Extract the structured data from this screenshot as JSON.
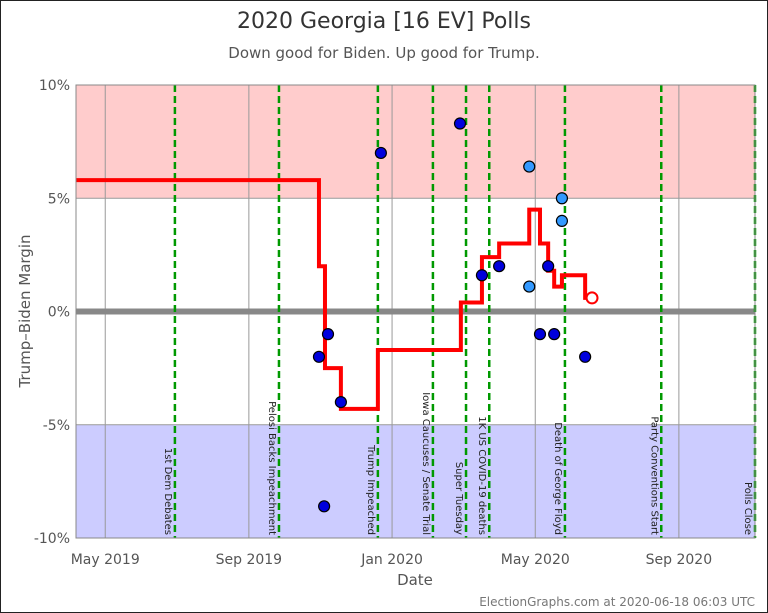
{
  "chart_data": {
    "type": "scatter",
    "title": "2020 Georgia [16 EV] Polls",
    "subtitle": "Down good for Biden. Up good for Trump.",
    "x_label": "Date",
    "y_label": "Trump–Biden Margin",
    "footer": "ElectionGraphs.com at 2020-06-18 06:03 UTC",
    "xlim": [
      2019.265,
      2020.844
    ],
    "ylim": [
      -10,
      10
    ],
    "xticks": [
      {
        "value": 2019.333,
        "label": "May 2019"
      },
      {
        "value": 2019.667,
        "label": "Sep 2019"
      },
      {
        "value": 2020.0,
        "label": "Jan 2020"
      },
      {
        "value": 2020.333,
        "label": "May 2020"
      },
      {
        "value": 2020.667,
        "label": "Sep 2020"
      }
    ],
    "yticks": [
      {
        "value": 10,
        "label": "10%"
      },
      {
        "value": 5,
        "label": "5%"
      },
      {
        "value": 0,
        "label": "0%"
      },
      {
        "value": -5,
        "label": "-5%"
      },
      {
        "value": -10,
        "label": "-10%"
      }
    ],
    "bands": [
      {
        "from": 5,
        "to": 10,
        "color": "#ffcccc"
      },
      {
        "from": -10,
        "to": -5,
        "color": "#ccccff"
      }
    ],
    "events": [
      {
        "x": 2019.495,
        "label": "1st Dem Debates"
      },
      {
        "x": 2019.737,
        "label": "Pelosi Backs Impeachment"
      },
      {
        "x": 2019.967,
        "label": "Trump Impeached"
      },
      {
        "x": 2020.095,
        "label": "Iowa Caucuses / Senate Trial"
      },
      {
        "x": 2020.172,
        "label": "Super Tuesday"
      },
      {
        "x": 2020.226,
        "label": "1K US COVID-19 deaths"
      },
      {
        "x": 2020.402,
        "label": "Death of George Floyd"
      },
      {
        "x": 2020.626,
        "label": "Party Conventions Start"
      },
      {
        "x": 2020.844,
        "label": "Polls Close"
      }
    ],
    "series": [
      {
        "type": "scatter",
        "color": "#0000dd",
        "x": [
          2019.83,
          2019.851,
          2019.842,
          2019.881,
          2019.974,
          2020.158,
          2020.209,
          2020.249,
          2020.344,
          2020.363,
          2020.377,
          2020.449
        ],
        "values": [
          -2.0,
          -1.0,
          -8.6,
          -4.0,
          7.0,
          8.3,
          1.6,
          2.0,
          -1.0,
          2.0,
          -1.0,
          -2.0
        ]
      },
      {
        "type": "scatter",
        "color": "#3399ff",
        "x": [
          2020.319,
          2020.319,
          2020.395,
          2020.395
        ],
        "values": [
          6.4,
          1.1,
          5.0,
          4.0
        ]
      },
      {
        "type": "line",
        "color": "#ff0000",
        "x": [
          2019.265,
          2019.83,
          2019.83,
          2019.844,
          2019.844,
          2019.881,
          2019.881,
          2019.967,
          2019.967,
          2020.16,
          2020.16,
          2020.209,
          2020.209,
          2020.249,
          2020.249,
          2020.319,
          2020.319,
          2020.344,
          2020.344,
          2020.363,
          2020.363,
          2020.377,
          2020.377,
          2020.395,
          2020.395,
          2020.449,
          2020.449,
          2020.465
        ],
        "values": [
          5.8,
          5.8,
          2.0,
          2.0,
          -2.5,
          -2.5,
          -4.3,
          -4.3,
          -1.7,
          -1.7,
          0.4,
          0.4,
          2.4,
          2.4,
          3.0,
          3.0,
          4.5,
          4.5,
          3.0,
          3.0,
          1.8,
          1.8,
          1.1,
          1.1,
          1.6,
          1.6,
          0.6,
          0.6
        ]
      },
      {
        "type": "hollow",
        "color": "#ff0000",
        "x": [
          2020.465
        ],
        "values": [
          0.6
        ]
      }
    ]
  }
}
